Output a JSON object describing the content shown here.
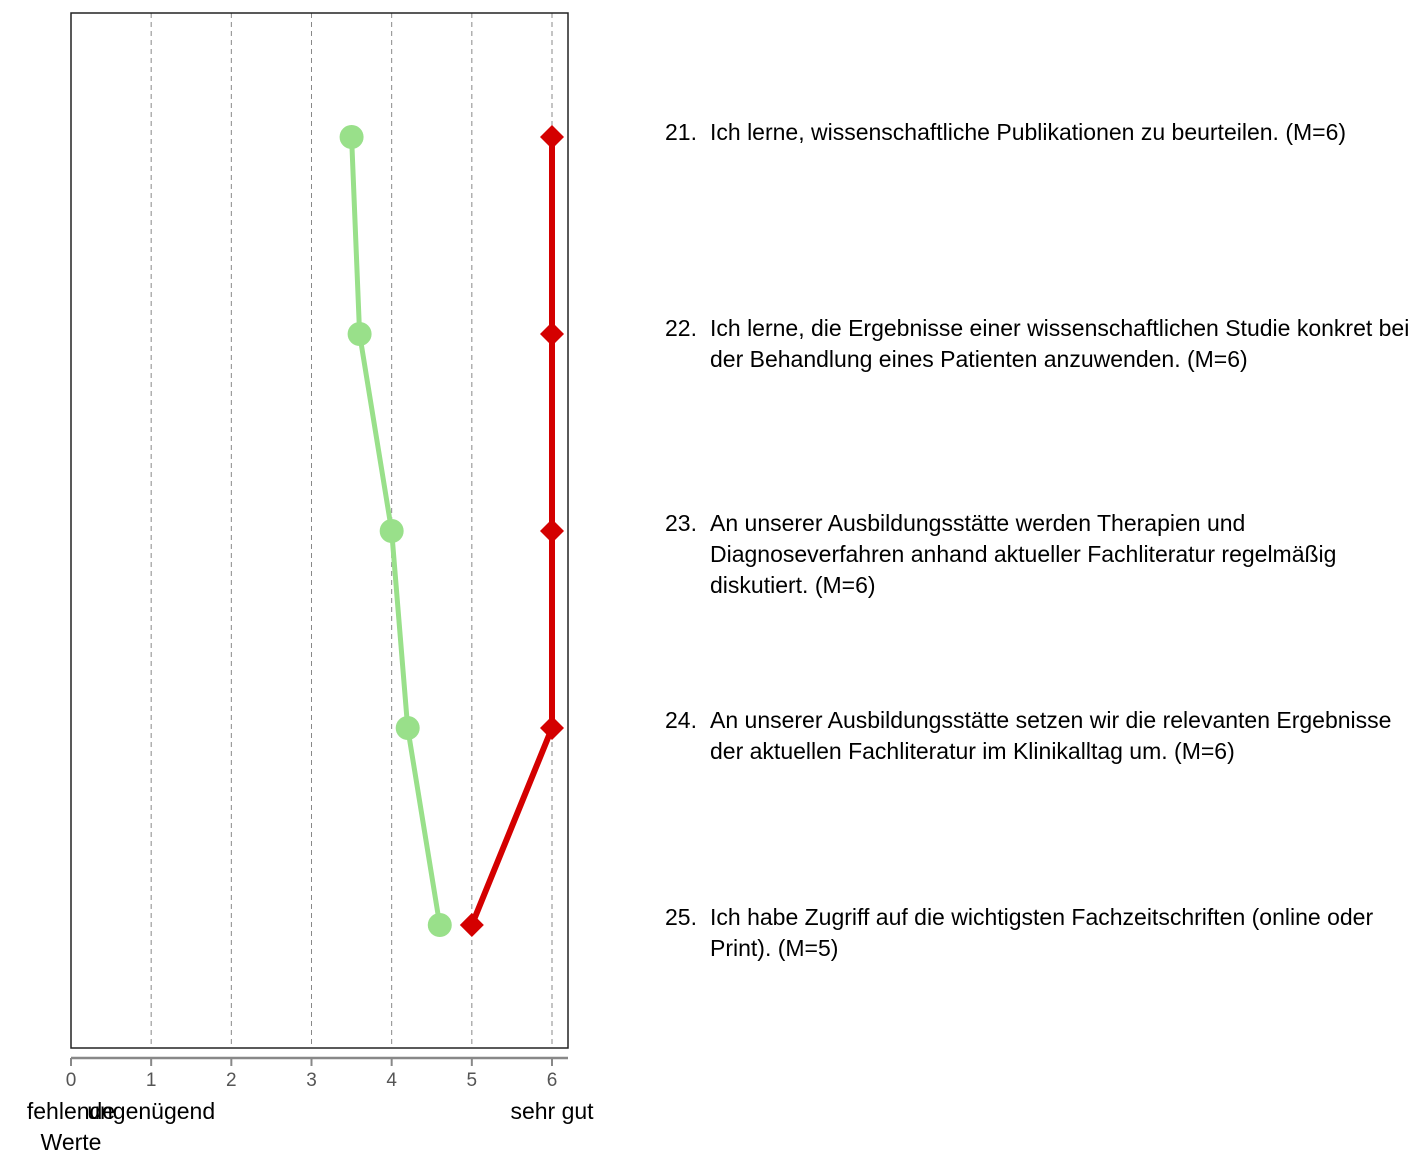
{
  "chart_data": {
    "type": "line",
    "xlim": [
      0,
      6
    ],
    "x_ticks": [
      "0",
      "1",
      "2",
      "3",
      "4",
      "5",
      "6"
    ],
    "grid": "vertical dashed at 1-6",
    "scale_labels": [
      {
        "x": 0,
        "text": "fehlende\nWerte"
      },
      {
        "x": 1,
        "text": "ungenügend"
      },
      {
        "x": 6,
        "text": "sehr gut"
      }
    ],
    "categories": [
      "21",
      "22",
      "23",
      "24",
      "25"
    ],
    "series": [
      {
        "marker": "circle",
        "color": "#99e08a",
        "values": [
          3.5,
          3.6,
          4.0,
          4.2,
          4.6
        ]
      },
      {
        "marker": "diamond",
        "color": "#d40000",
        "values": [
          6,
          6,
          6,
          6,
          5
        ]
      }
    ]
  },
  "items": [
    {
      "num": "21.",
      "text": "Ich lerne, wissenschaftliche Publikationen zu beurteilen. (M=6)"
    },
    {
      "num": "22.",
      "text": "Ich lerne, die Ergebnisse einer wissenschaftlichen Studie konkret bei der Behandlung eines Patienten anzuwenden. (M=6)"
    },
    {
      "num": "23.",
      "text": "An unserer Ausbildungsstätte werden Therapien und Diagnoseverfahren anhand aktueller Fachliteratur regelmäßig diskutiert. (M=6)"
    },
    {
      "num": "24.",
      "text": "An unserer Ausbildungsstätte setzen wir die relevanten Ergebnisse der aktuellen Fachliteratur im Klinikalltag um. (M=6)"
    },
    {
      "num": "25.",
      "text": "Ich habe Zugriff auf die wichtigsten Fachzeitschriften (online oder Print). (M=5)"
    }
  ]
}
